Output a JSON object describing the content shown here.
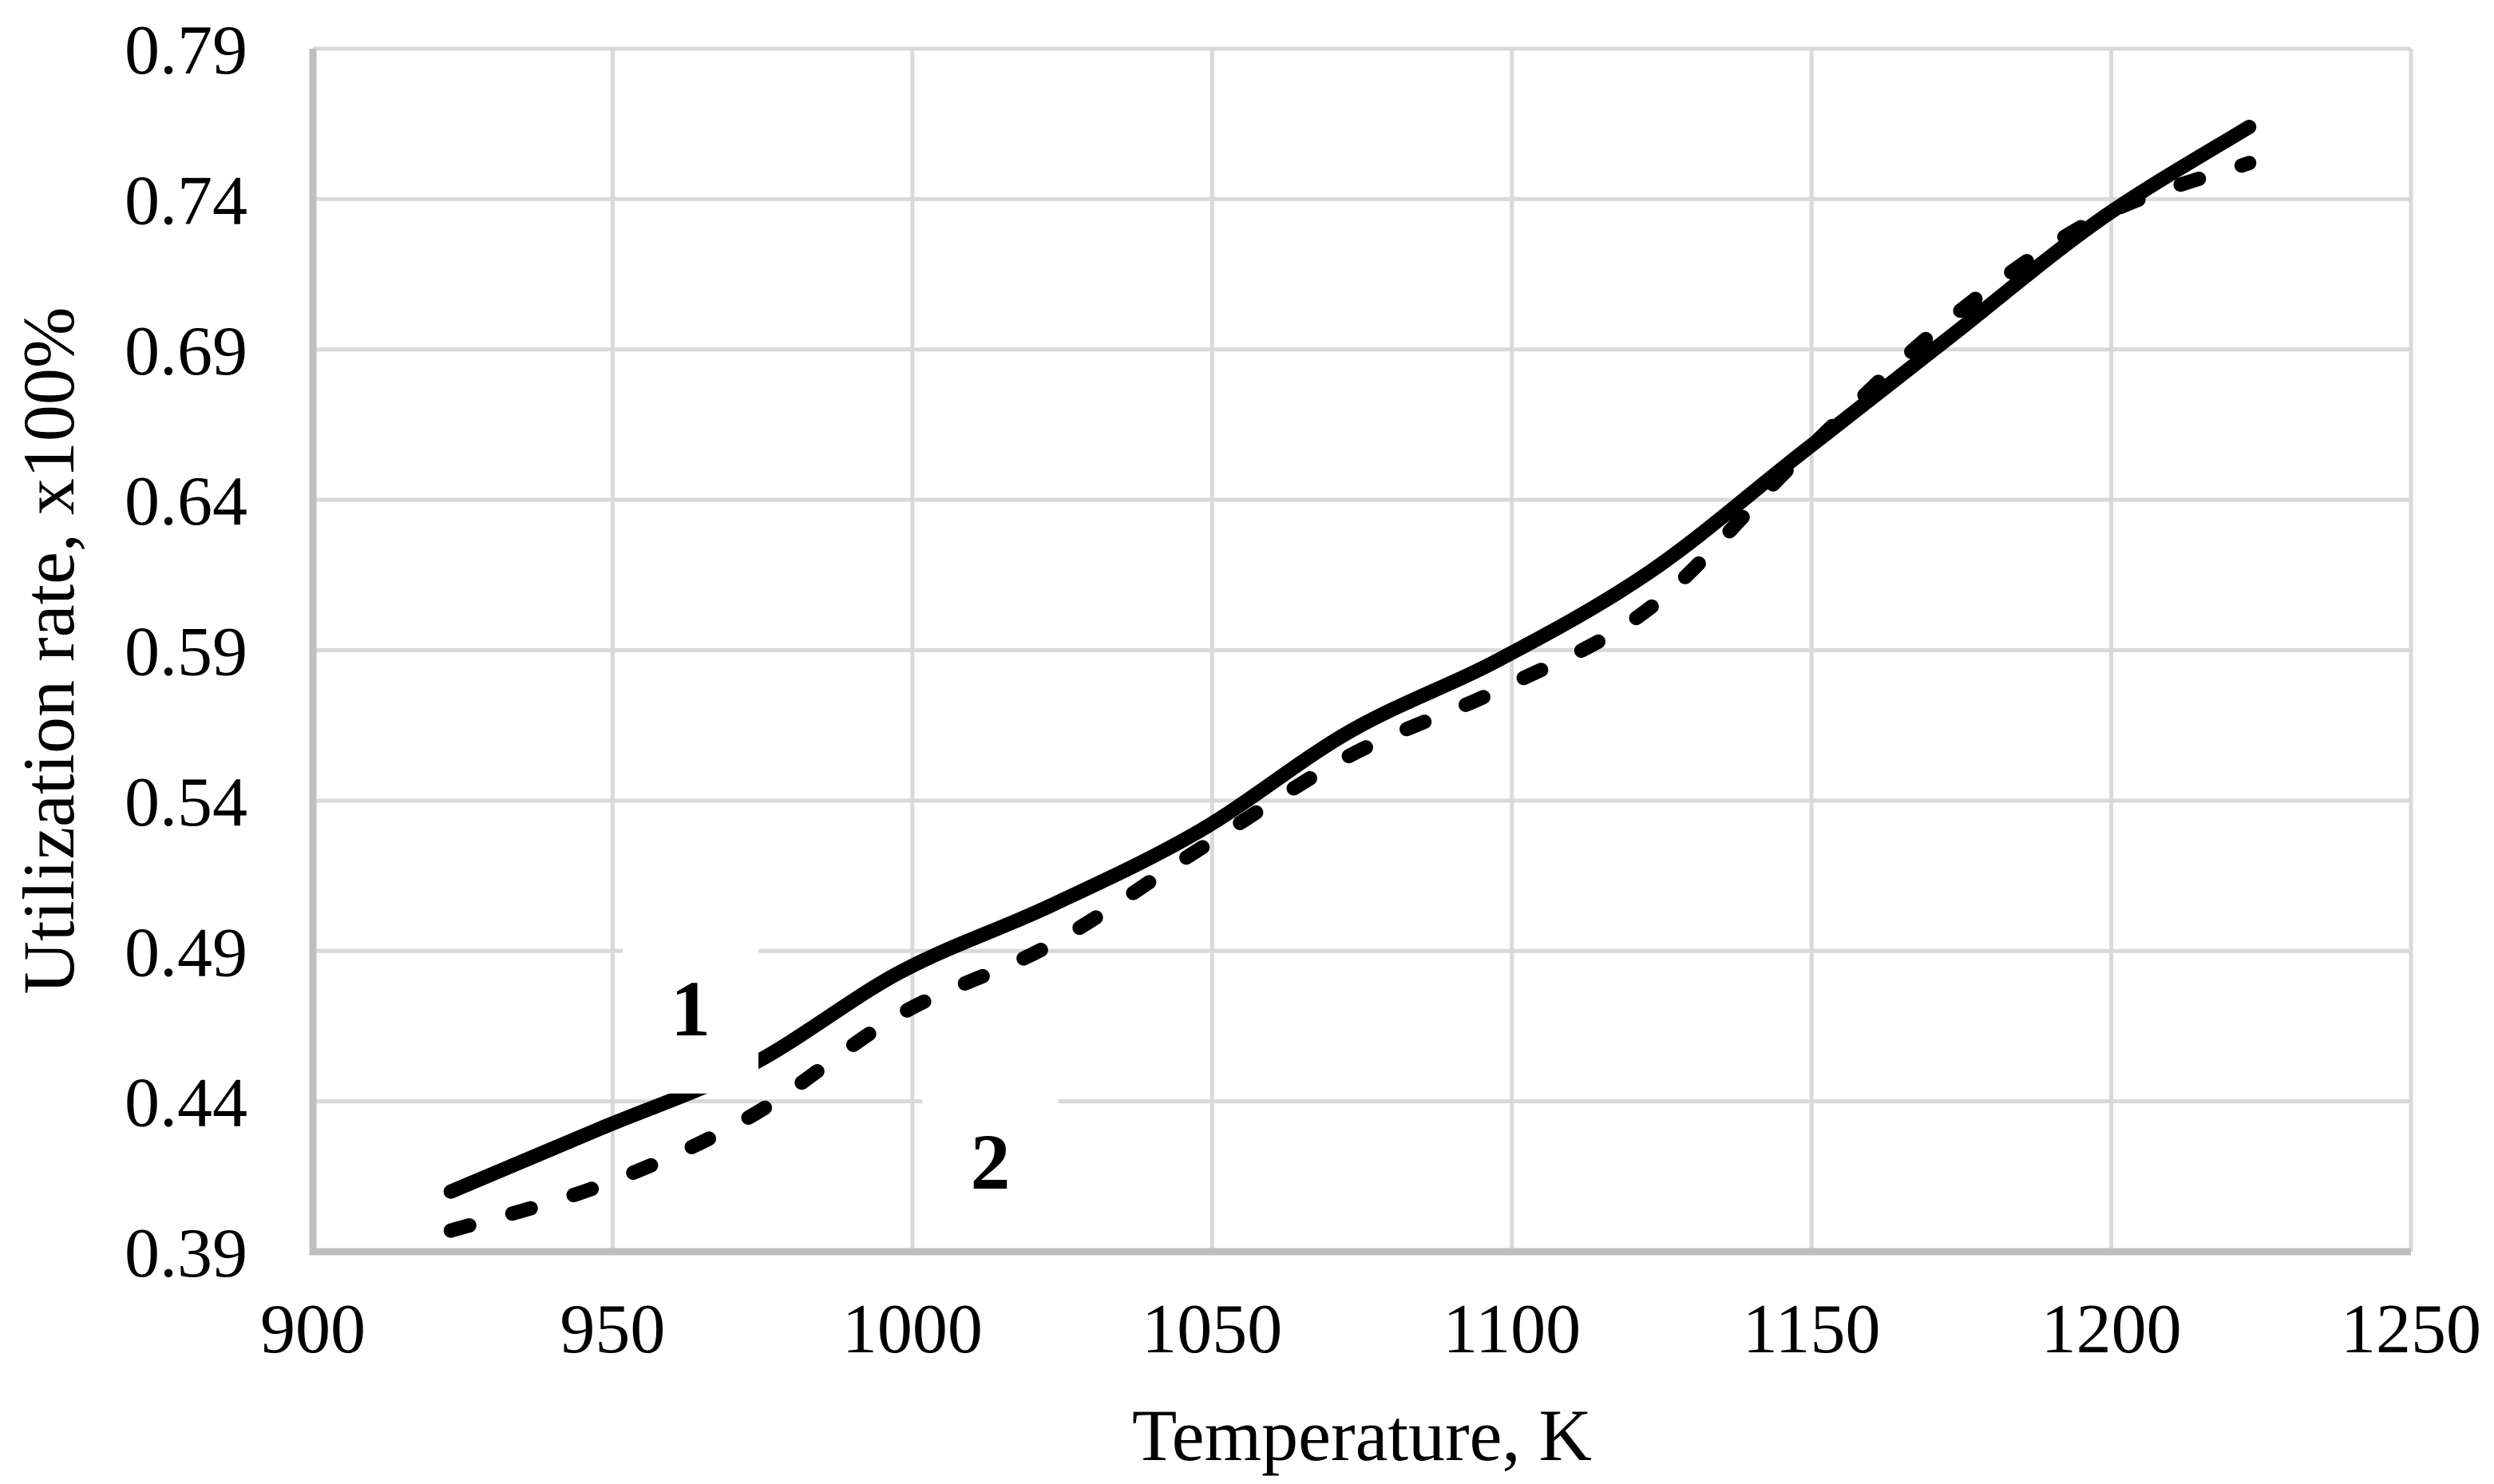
{
  "chart_data": {
    "type": "line",
    "title": "",
    "xlabel": "Temperature, K",
    "ylabel": "Utilization rate, x100%",
    "xlim": [
      900,
      1250
    ],
    "ylim": [
      0.39,
      0.79
    ],
    "grid": true,
    "legend_position": "none",
    "x_ticks": [
      900,
      950,
      1000,
      1050,
      1100,
      1150,
      1200,
      1250
    ],
    "x_tick_labels": [
      "900",
      "950",
      "1000",
      "1050",
      "1100",
      "1150",
      "1200",
      "1250"
    ],
    "y_ticks": [
      0.39,
      0.44,
      0.49,
      0.54,
      0.59,
      0.64,
      0.69,
      0.74,
      0.79
    ],
    "y_tick_labels": [
      "0.39",
      "0.44",
      "0.49",
      "0.54",
      "0.59",
      "0.64",
      "0.69",
      "0.74",
      "0.79"
    ],
    "x": [
      923,
      948,
      973,
      998,
      1023,
      1048,
      1073,
      1098,
      1123,
      1148,
      1173,
      1198,
      1223
    ],
    "series": [
      {
        "name": "1",
        "style": "solid",
        "values": [
          0.41,
          0.431,
          0.452,
          0.483,
          0.505,
          0.53,
          0.563,
          0.587,
          0.616,
          0.655,
          0.694,
          0.733,
          0.764
        ]
      },
      {
        "name": "2",
        "style": "dashed",
        "values": [
          0.397,
          0.412,
          0.435,
          0.469,
          0.492,
          0.524,
          0.555,
          0.577,
          0.604,
          0.654,
          0.7,
          0.734,
          0.752
        ]
      }
    ],
    "annotations": [
      {
        "text": "1",
        "x": 963,
        "y": 0.471
      },
      {
        "text": "2",
        "x": 1013,
        "y": 0.42
      }
    ],
    "colors": {
      "series_line": "#000000",
      "gridline": "#d9d9d9",
      "axis_line": "#bfbfbf",
      "background": "#ffffff",
      "text": "#000000"
    }
  }
}
